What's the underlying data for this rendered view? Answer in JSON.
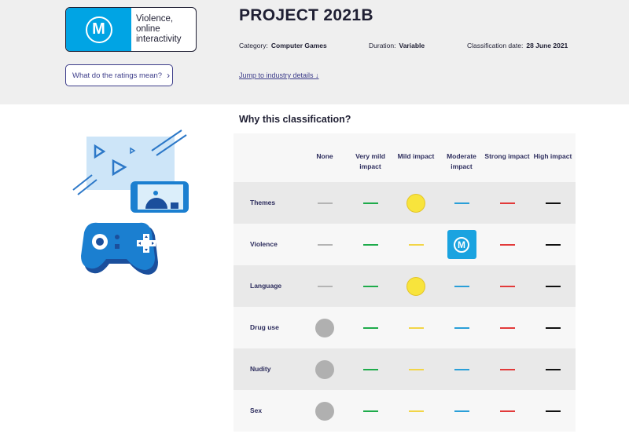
{
  "classification": {
    "rating_letter": "M",
    "consumer_advice": "Violence, online interactivity"
  },
  "ratings_button": {
    "label": "What do the ratings mean?",
    "icon": "chevron-right-icon"
  },
  "title": "PROJECT 2021B",
  "meta": {
    "category_label": "Category:",
    "category_value": "Computer Games",
    "duration_label": "Duration:",
    "duration_value": "Variable",
    "date_label": "Classification date:",
    "date_value": "28 June 2021"
  },
  "jump_link": "Jump to industry details ↓",
  "section_title": "Why this classification?",
  "table": {
    "columns": [
      "None",
      "Very mild impact",
      "Mild impact",
      "Moderate impact",
      "Strong impact",
      "High impact"
    ],
    "column_colors": [
      "#b4b4b4",
      "#1eab4b",
      "#f2d547",
      "#2a9fd8",
      "#e23a3a",
      "#111111"
    ],
    "rows": [
      {
        "label": "Themes",
        "level": 2
      },
      {
        "label": "Violence",
        "level": 3
      },
      {
        "label": "Language",
        "level": 2
      },
      {
        "label": "Drug use",
        "level": 0
      },
      {
        "label": "Nudity",
        "level": 0
      },
      {
        "label": "Sex",
        "level": 0
      }
    ],
    "marker_colors": {
      "none": "#b0b0b0",
      "mild": "#f8e43c",
      "moderate": "#1aa3e0"
    }
  },
  "colors": {
    "accent": "#00a4e4",
    "navy": "#2e2e5e",
    "link": "#3d3d8a"
  }
}
